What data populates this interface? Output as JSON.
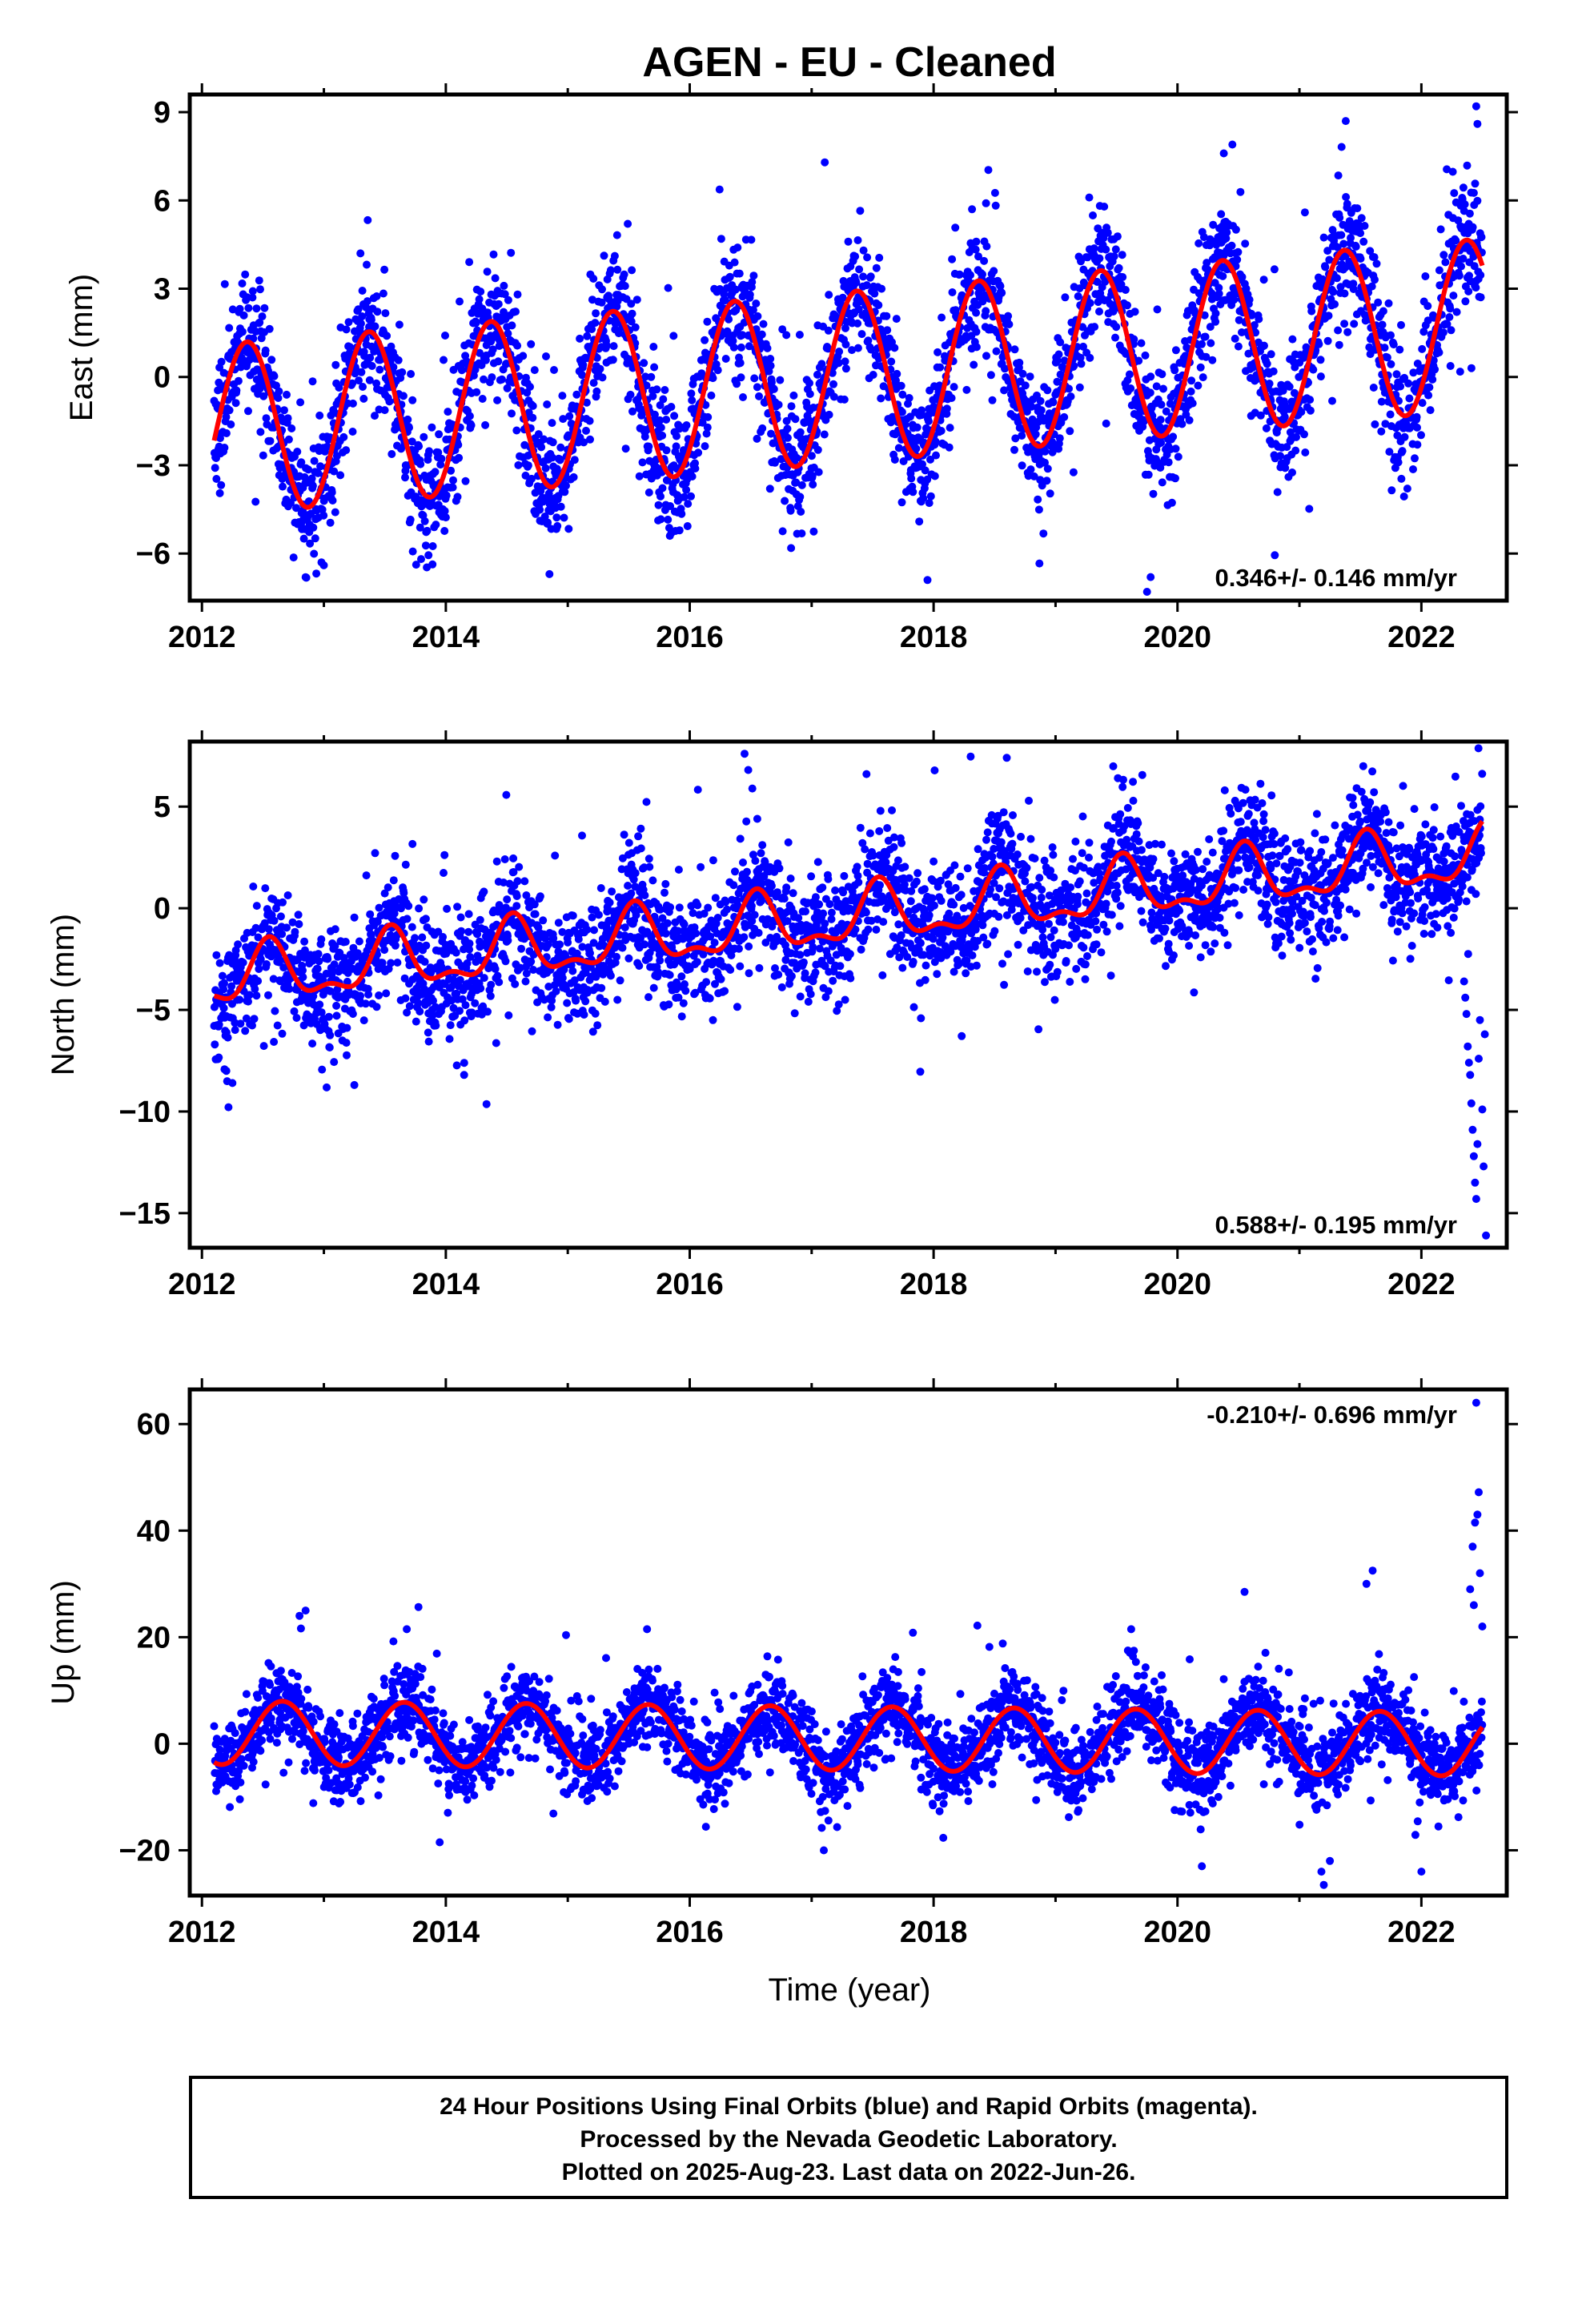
{
  "figure": {
    "title": "AGEN  - EU - Cleaned",
    "xlabel": "Time (year)",
    "footer": [
      "24 Hour Positions Using Final Orbits (blue) and Rapid Orbits (magenta).",
      "Processed by the Nevada Geodetic Laboratory.",
      "Plotted on 2025-Aug-23. Last data on 2022-Jun-26."
    ]
  },
  "colors": {
    "points": "#0000ff",
    "model": "#ff0000",
    "frame": "#000000"
  },
  "chart_data": [
    {
      "type": "scatter",
      "ylabel": "East (mm)",
      "xlim": [
        2011.9,
        2022.7
      ],
      "ylim": [
        -7.6,
        9.6
      ],
      "yticks": [
        -6,
        -3,
        0,
        3,
        6,
        9
      ],
      "xticks": [
        2012,
        2014,
        2016,
        2018,
        2020,
        2022
      ],
      "rate": "0.346+/- 0.146 mm/yr",
      "rate_position": "bottom-right",
      "model": {
        "x_start": 2012.1,
        "x_end": 2022.5,
        "offset": 0.0,
        "trend": 0.346,
        "annual_amp": 2.9,
        "annual_phase_peak": 2012.37,
        "semi_amp": 0.0,
        "noise": 1.05,
        "noise_seed": 11
      },
      "notable_points": [
        {
          "x": 2022.45,
          "y": 9.2
        },
        {
          "x": 2022.46,
          "y": 8.6
        },
        {
          "x": 2021.38,
          "y": 8.7
        },
        {
          "x": 2020.45,
          "y": 7.9
        },
        {
          "x": 2020.38,
          "y": 7.6
        },
        {
          "x": 2019.75,
          "y": -7.3
        },
        {
          "x": 2019.78,
          "y": -6.8
        },
        {
          "x": 2014.85,
          "y": -6.7
        },
        {
          "x": 2017.95,
          "y": -6.9
        },
        {
          "x": 2012.98,
          "y": -6.3
        },
        {
          "x": 2013.0,
          "y": -6.4
        },
        {
          "x": 2015.85,
          "y": -5.3
        },
        {
          "x": 2013.3,
          "y": 4.2
        },
        {
          "x": 2018.35,
          "y": 4.6
        },
        {
          "x": 2017.3,
          "y": 4.6
        }
      ]
    },
    {
      "type": "scatter",
      "ylabel": "North (mm)",
      "xlim": [
        2011.9,
        2022.7
      ],
      "ylim": [
        -16.7,
        8.2
      ],
      "yticks": [
        -15,
        -10,
        -5,
        0,
        5
      ],
      "xticks": [
        2012,
        2014,
        2016,
        2018,
        2020,
        2022
      ],
      "rate": "0.588+/- 0.195 mm/yr",
      "rate_position": "bottom-right",
      "model": {
        "x_start": 2012.1,
        "x_end": 2022.5,
        "offset": -0.5,
        "trend": 0.588,
        "annual_amp": 1.3,
        "annual_phase_peak": 2012.55,
        "semi_amp": 0.6,
        "noise": 1.4,
        "noise_seed": 23
      },
      "notable_points": [
        {
          "x": 2016.45,
          "y": 7.6
        },
        {
          "x": 2018.6,
          "y": 7.4
        },
        {
          "x": 2016.48,
          "y": 6.8
        },
        {
          "x": 2017.45,
          "y": 6.6
        },
        {
          "x": 2012.25,
          "y": -8.6
        },
        {
          "x": 2012.2,
          "y": -8.0
        },
        {
          "x": 2013.25,
          "y": -8.7
        },
        {
          "x": 2014.15,
          "y": -8.2
        },
        {
          "x": 2022.35,
          "y": -3.6
        },
        {
          "x": 2022.37,
          "y": -5.2
        },
        {
          "x": 2022.38,
          "y": -6.8
        },
        {
          "x": 2022.4,
          "y": -8.2
        },
        {
          "x": 2022.41,
          "y": -9.6
        },
        {
          "x": 2022.42,
          "y": -10.9
        },
        {
          "x": 2022.43,
          "y": -12.2
        },
        {
          "x": 2022.44,
          "y": -13.5
        },
        {
          "x": 2022.45,
          "y": -14.3
        },
        {
          "x": 2022.46,
          "y": -11.6
        },
        {
          "x": 2022.47,
          "y": -7.4
        },
        {
          "x": 2022.48,
          "y": -5.5
        },
        {
          "x": 2022.5,
          "y": -9.9
        },
        {
          "x": 2022.51,
          "y": -12.7
        },
        {
          "x": 2022.52,
          "y": -6.2
        },
        {
          "x": 2022.53,
          "y": -16.1
        },
        {
          "x": 2022.36,
          "y": -4.4
        },
        {
          "x": 2022.39,
          "y": -7.6
        }
      ]
    },
    {
      "type": "scatter",
      "ylabel": "Up (mm)",
      "xlim": [
        2011.9,
        2022.7
      ],
      "ylim": [
        -28.5,
        66.5
      ],
      "yticks": [
        -20,
        0,
        20,
        40,
        60
      ],
      "xticks": [
        2012,
        2014,
        2016,
        2018,
        2020,
        2022
      ],
      "rate": "-0.210+/- 0.696 mm/yr",
      "rate_position": "top-right",
      "model": {
        "x_start": 2012.1,
        "x_end": 2022.5,
        "offset": 1.0,
        "trend": -0.21,
        "annual_amp": 6.0,
        "annual_phase_peak": 2012.66,
        "semi_amp": 0.0,
        "noise": 3.6,
        "noise_seed": 37
      },
      "notable_points": [
        {
          "x": 2022.45,
          "y": 64.0
        },
        {
          "x": 2022.47,
          "y": 47.2
        },
        {
          "x": 2022.46,
          "y": 43.0
        },
        {
          "x": 2022.44,
          "y": 41.5
        },
        {
          "x": 2022.42,
          "y": 37.0
        },
        {
          "x": 2022.48,
          "y": 32.0
        },
        {
          "x": 2022.4,
          "y": 29.0
        },
        {
          "x": 2022.43,
          "y": 26.0
        },
        {
          "x": 2022.5,
          "y": 22.0
        },
        {
          "x": 2021.6,
          "y": 32.5
        },
        {
          "x": 2020.55,
          "y": 28.5
        },
        {
          "x": 2021.55,
          "y": 30.0
        },
        {
          "x": 2012.85,
          "y": 25.0
        },
        {
          "x": 2012.8,
          "y": 24.0
        },
        {
          "x": 2013.68,
          "y": 21.5
        },
        {
          "x": 2015.65,
          "y": 21.5
        },
        {
          "x": 2019.62,
          "y": 21.5
        },
        {
          "x": 2013.95,
          "y": -18.5
        },
        {
          "x": 2021.2,
          "y": -26.5
        },
        {
          "x": 2021.18,
          "y": -24.0
        },
        {
          "x": 2020.2,
          "y": -23.0
        },
        {
          "x": 2021.25,
          "y": -22.0
        },
        {
          "x": 2022.0,
          "y": -24.0
        },
        {
          "x": 2017.1,
          "y": -20.0
        }
      ]
    }
  ]
}
